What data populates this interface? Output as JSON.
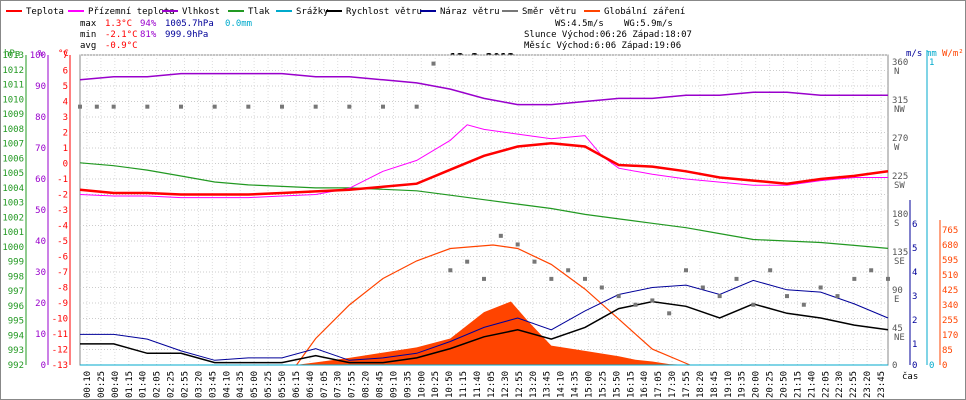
{
  "chart_data": {
    "type": "line",
    "title": "12.3.2013",
    "legend": [
      {
        "label": "Teplota",
        "color": "#ff0000"
      },
      {
        "label": "Přízemní teplota",
        "color": "#ff00ff"
      },
      {
        "label": "Vlhkost",
        "color": "#9900cc"
      },
      {
        "label": "Tlak",
        "color": "#229922"
      },
      {
        "label": "Srážky",
        "color": "#00aacc"
      },
      {
        "label": "Rychlost větru",
        "color": "#000000"
      },
      {
        "label": "Náraz větru",
        "color": "#000099"
      },
      {
        "label": "Směr větru",
        "color": "#777777"
      },
      {
        "label": "Globální záření",
        "color": "#ff4400"
      }
    ],
    "stats": {
      "max_label": "max",
      "max_temp": "1.3°C",
      "max_hum": "94%",
      "max_press": "1005.7hPa",
      "max_rain": "0.0mm",
      "min_label": "min",
      "min_temp": "-2.1°C",
      "min_hum": "81%",
      "min_press": "999.9hPa",
      "avg_label": "avg",
      "avg_temp": "-0.9°C",
      "ws": "WS:4.5m/s",
      "wg": "WG:5.9m/s",
      "sun": "Slunce Východ:06:26  Západ:18:07",
      "moon": "Měsíc  Východ:6:06  Západ:19:06"
    },
    "axes": {
      "hpa_unit": "hPa",
      "pct_unit": "%",
      "temp_unit": "°C",
      "ms_unit": "m/s",
      "mm_unit": "mm",
      "wm_unit": "W/m²",
      "time_label": "čas",
      "hpa_ticks": [
        "1013",
        "1012",
        "1011",
        "1010",
        "1009",
        "1008",
        "1007",
        "1006",
        "1005",
        "1004",
        "1003",
        "1002",
        "1001",
        "1000",
        "999",
        "998",
        "997",
        "996",
        "995",
        "994",
        "993",
        "992"
      ],
      "pct_ticks": [
        "100",
        "90",
        "80",
        "70",
        "60",
        "50",
        "40",
        "30",
        "20",
        "10",
        "0"
      ],
      "temp_ticks": [
        "7",
        "6",
        "5",
        "4",
        "3",
        "2",
        "1",
        "0",
        "-1",
        "-2",
        "-3",
        "-4",
        "-5",
        "-6",
        "-7",
        "-8",
        "-9",
        "-10",
        "-11",
        "-12",
        "-13"
      ],
      "dir_ticks": [
        "360 N",
        "315 NW",
        "270 W",
        "225 SW",
        "180 S",
        "135 SE",
        "90 E",
        "45 NE",
        "0"
      ],
      "ms_ticks": [
        "6",
        "5",
        "4",
        "3",
        "2",
        "1",
        "0"
      ],
      "mm_ticks": [
        "1",
        "0"
      ],
      "wm_ticks": [
        "765",
        "680",
        "595",
        "510",
        "425",
        "340",
        "255",
        "170",
        "85",
        "0"
      ],
      "time_ticks": [
        "00:10",
        "00:25",
        "00:40",
        "01:15",
        "01:40",
        "02:05",
        "02:25",
        "02:55",
        "03:20",
        "03:45",
        "04:10",
        "04:35",
        "05:00",
        "05:25",
        "05:50",
        "06:15",
        "06:40",
        "07:05",
        "07:30",
        "07:55",
        "08:20",
        "08:45",
        "09:10",
        "09:35",
        "10:00",
        "10:25",
        "10:50",
        "11:15",
        "11:40",
        "12:05",
        "12:30",
        "12:55",
        "13:20",
        "13:45",
        "14:10",
        "14:35",
        "15:00",
        "15:25",
        "15:50",
        "16:15",
        "16:40",
        "17:05",
        "17:30",
        "17:55",
        "18:20",
        "18:45",
        "19:10",
        "19:35",
        "20:00",
        "20:25",
        "20:50",
        "21:15",
        "21:40",
        "22:05",
        "22:30",
        "22:55",
        "23:20",
        "23:45"
      ],
      "ylim_temp": [
        -13,
        7
      ],
      "ylim_hum": [
        0,
        100
      ],
      "ylim_press": [
        992,
        1013
      ],
      "ylim_dir": [
        0,
        360
      ],
      "ylim_wind": [
        0,
        6
      ],
      "ylim_rad": [
        0,
        765
      ],
      "xlim_hours": [
        0,
        24
      ]
    },
    "series": [
      {
        "name": "Teplota",
        "x": [
          0,
          1,
          2,
          3,
          4,
          5,
          6,
          7,
          8,
          9,
          10,
          11,
          12,
          13,
          14,
          15,
          15.5,
          16,
          17,
          18,
          19,
          20,
          21,
          22,
          23,
          24
        ],
        "values": [
          -1.7,
          -1.9,
          -1.9,
          -2.0,
          -2.0,
          -2.0,
          -1.9,
          -1.8,
          -1.7,
          -1.5,
          -1.3,
          -0.4,
          0.5,
          1.1,
          1.3,
          1.1,
          0.5,
          -0.1,
          -0.2,
          -0.5,
          -0.9,
          -1.1,
          -1.3,
          -1.0,
          -0.8,
          -0.5
        ]
      },
      {
        "name": "Přízemní teplota",
        "x": [
          0,
          1,
          2,
          3,
          4,
          5,
          6,
          7,
          8,
          9,
          10,
          11,
          11.5,
          12,
          13,
          14,
          15,
          15.5,
          16,
          17,
          18,
          19,
          20,
          21,
          22,
          23,
          24
        ],
        "values": [
          -2.0,
          -2.1,
          -2.1,
          -2.2,
          -2.2,
          -2.2,
          -2.1,
          -2.0,
          -1.6,
          -0.5,
          0.2,
          1.5,
          2.5,
          2.2,
          1.9,
          1.6,
          1.8,
          0.5,
          -0.3,
          -0.7,
          -1.0,
          -1.2,
          -1.4,
          -1.4,
          -1.1,
          -0.9,
          -0.9
        ]
      },
      {
        "name": "Vlhkost",
        "x": [
          0,
          1,
          2,
          3,
          4,
          5,
          6,
          7,
          8,
          9,
          10,
          11,
          12,
          13,
          14,
          15,
          16,
          17,
          18,
          19,
          20,
          21,
          22,
          23,
          24
        ],
        "values": [
          92,
          93,
          93,
          94,
          94,
          94,
          94,
          93,
          93,
          92,
          91,
          89,
          86,
          84,
          84,
          85,
          86,
          86,
          87,
          87,
          88,
          88,
          87,
          87,
          87
        ]
      },
      {
        "name": "Tlak",
        "x": [
          0,
          1,
          2,
          3,
          4,
          5,
          6,
          7,
          8,
          9,
          10,
          11,
          12,
          13,
          14,
          15,
          16,
          17,
          18,
          19,
          20,
          21,
          22,
          23,
          24
        ],
        "values": [
          1005.7,
          1005.5,
          1005.2,
          1004.8,
          1004.4,
          1004.2,
          1004.1,
          1004.0,
          1004.0,
          1003.9,
          1003.8,
          1003.5,
          1003.2,
          1002.9,
          1002.6,
          1002.2,
          1001.9,
          1001.6,
          1001.3,
          1000.9,
          1000.5,
          1000.4,
          1000.3,
          1000.1,
          999.9
        ]
      },
      {
        "name": "Srážky",
        "x": [
          0,
          24
        ],
        "values": [
          0,
          0
        ]
      },
      {
        "name": "Rychlost větru",
        "x": [
          0,
          1,
          2,
          3,
          4,
          5,
          6,
          7,
          8,
          9,
          10,
          11,
          12,
          13,
          14,
          15,
          16,
          17,
          18,
          19,
          20,
          21,
          22,
          23,
          24
        ],
        "values": [
          0.9,
          0.9,
          0.5,
          0.5,
          0.1,
          0.1,
          0.1,
          0.4,
          0.1,
          0.1,
          0.3,
          0.7,
          1.2,
          1.5,
          1.1,
          1.6,
          2.4,
          2.7,
          2.5,
          2.0,
          2.6,
          2.2,
          2.0,
          1.7,
          1.5
        ]
      },
      {
        "name": "Náraz větru",
        "x": [
          0,
          1,
          2,
          3,
          4,
          5,
          6,
          7,
          8,
          9,
          10,
          11,
          12,
          13,
          14,
          15,
          16,
          17,
          18,
          19,
          20,
          21,
          22,
          23,
          24
        ],
        "values": [
          1.3,
          1.3,
          1.1,
          0.6,
          0.2,
          0.3,
          0.3,
          0.7,
          0.2,
          0.3,
          0.5,
          1.0,
          1.6,
          2.0,
          1.5,
          2.3,
          3.0,
          3.3,
          3.4,
          3.0,
          3.6,
          3.2,
          3.1,
          2.6,
          2.0
        ]
      },
      {
        "name": "Globální záření",
        "x": [
          0,
          6.4,
          7,
          8,
          9,
          10,
          11,
          12,
          12.8,
          13.3,
          14,
          15,
          16,
          16.5,
          17,
          17.5,
          18.1,
          24
        ],
        "values": [
          0,
          0,
          15,
          40,
          70,
          100,
          150,
          300,
          360,
          250,
          110,
          80,
          50,
          30,
          20,
          5,
          0,
          0
        ]
      },
      {
        "name": "Teoretické záření",
        "x": [
          6.43,
          7,
          8,
          9,
          10,
          11,
          12.27,
          13,
          14,
          15,
          16,
          17,
          18.12
        ],
        "values": [
          0,
          150,
          340,
          490,
          590,
          660,
          680,
          660,
          570,
          430,
          260,
          90,
          0
        ]
      }
    ],
    "wind_direction": {
      "x": [
        0,
        0.5,
        1,
        2,
        3,
        4,
        5,
        6,
        7,
        8,
        9,
        10,
        10.5,
        11,
        11.5,
        12,
        12.5,
        13,
        13.5,
        14,
        14.5,
        15,
        15.5,
        16,
        16.5,
        17,
        17.5,
        18,
        18.5,
        19,
        19.5,
        20,
        20.5,
        21,
        21.5,
        22,
        22.5,
        23,
        23.5,
        24
      ],
      "values": [
        300,
        300,
        300,
        300,
        300,
        300,
        300,
        300,
        300,
        300,
        300,
        300,
        350,
        110,
        120,
        100,
        150,
        140,
        120,
        100,
        110,
        100,
        90,
        80,
        70,
        75,
        60,
        110,
        90,
        80,
        100,
        70,
        110,
        80,
        70,
        90,
        80,
        100,
        110,
        100
      ]
    }
  }
}
